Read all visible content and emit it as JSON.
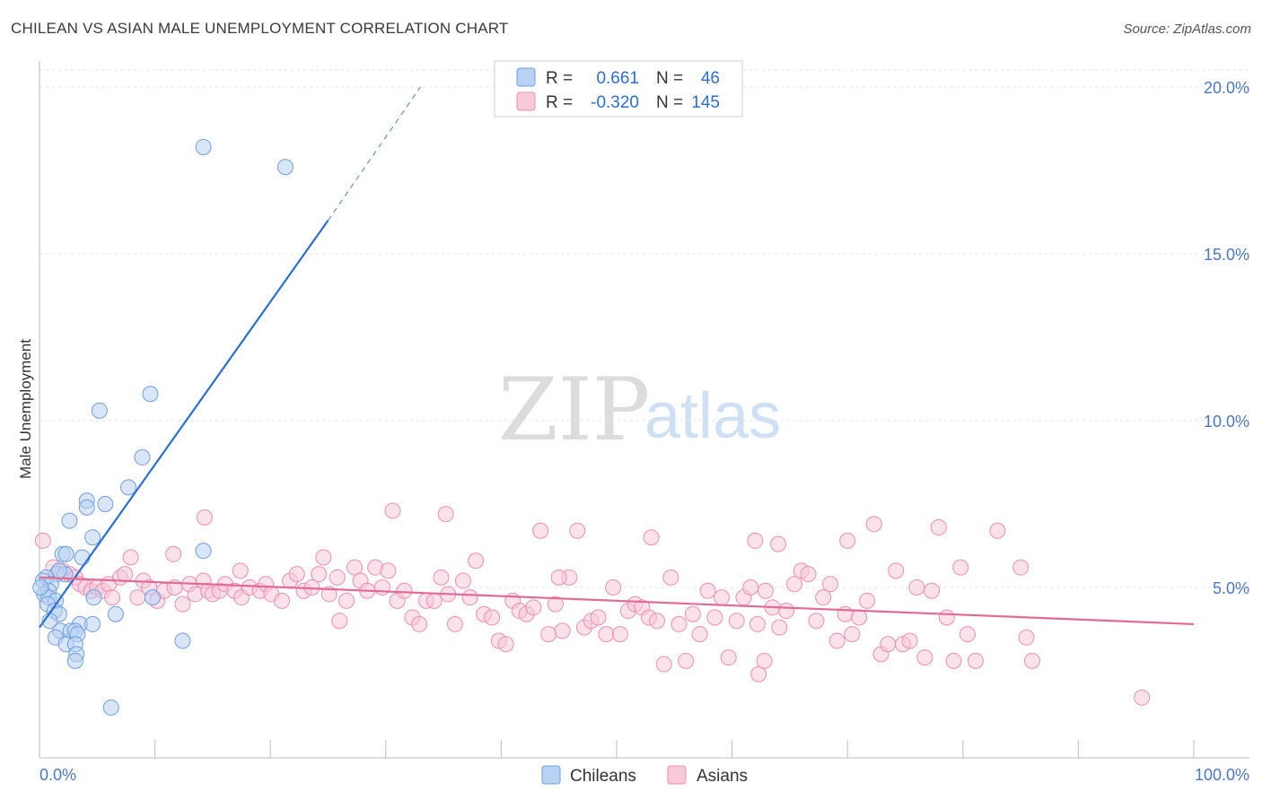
{
  "title": "CHILEAN VS ASIAN MALE UNEMPLOYMENT CORRELATION CHART",
  "source": "Source: ZipAtlas.com",
  "watermark": {
    "zip": "ZIP",
    "atlas": "atlas"
  },
  "colors": {
    "blue": "#6f9fe0",
    "blue_fill": "#b9d2f3",
    "blue_line": "#2b6fcf",
    "pink": "#ec8fb0",
    "pink_fill": "#f7c9d9",
    "pink_line": "#e26a96",
    "axis_text": "#4a78c2"
  },
  "legend": {
    "row1": {
      "r_label": "R =",
      "r_value": "0.661",
      "n_label": "N =",
      "n_value": "46"
    },
    "row2": {
      "r_label": "R =",
      "r_value": "-0.320",
      "n_label": "N =",
      "n_value": "145"
    }
  },
  "bottom_legend": {
    "chileans": "Chileans",
    "asians": "Asians"
  },
  "chart_data": {
    "type": "scatter",
    "title": "CHILEAN VS ASIAN MALE UNEMPLOYMENT CORRELATION CHART",
    "xlabel": "",
    "ylabel": "Male Unemployment",
    "xlim": [
      0,
      100
    ],
    "ylim": [
      0,
      20.5
    ],
    "x_tick_labels": [
      "0.0%",
      "100.0%"
    ],
    "y_ticks": [
      5,
      10,
      15,
      20
    ],
    "y_tick_labels": [
      "5.0%",
      "10.0%",
      "15.0%",
      "20.0%"
    ],
    "grid": true,
    "series": [
      {
        "name": "Chileans",
        "r": 0.661,
        "n": 46,
        "trend": {
          "x0": 0,
          "y0": 3.8,
          "x1": 25,
          "y1": 16.0,
          "dash_to_x": 33,
          "dash_to_y": 20.0
        },
        "points": [
          [
            14.2,
            18.2
          ],
          [
            21.3,
            17.6
          ],
          [
            9.6,
            10.8
          ],
          [
            5.2,
            10.3
          ],
          [
            8.9,
            8.9
          ],
          [
            7.7,
            8.0
          ],
          [
            4.1,
            7.6
          ],
          [
            5.7,
            7.5
          ],
          [
            4.1,
            7.4
          ],
          [
            2.6,
            7.0
          ],
          [
            4.6,
            6.5
          ],
          [
            14.2,
            6.1
          ],
          [
            2.0,
            6.0
          ],
          [
            2.3,
            6.0
          ],
          [
            3.7,
            5.9
          ],
          [
            1.5,
            5.4
          ],
          [
            2.2,
            5.4
          ],
          [
            1.7,
            5.5
          ],
          [
            0.6,
            5.3
          ],
          [
            0.3,
            5.2
          ],
          [
            1.0,
            5.1
          ],
          [
            0.8,
            4.9
          ],
          [
            0.4,
            4.8
          ],
          [
            0.8,
            4.7
          ],
          [
            4.7,
            4.7
          ],
          [
            9.8,
            4.7
          ],
          [
            1.4,
            4.6
          ],
          [
            0.7,
            4.5
          ],
          [
            1.3,
            4.3
          ],
          [
            1.7,
            4.2
          ],
          [
            6.6,
            4.2
          ],
          [
            0.9,
            4.0
          ],
          [
            3.5,
            3.9
          ],
          [
            4.6,
            3.9
          ],
          [
            1.8,
            3.7
          ],
          [
            2.7,
            3.7
          ],
          [
            3.1,
            3.7
          ],
          [
            3.3,
            3.6
          ],
          [
            1.4,
            3.5
          ],
          [
            2.3,
            3.3
          ],
          [
            12.4,
            3.4
          ],
          [
            3.1,
            3.3
          ],
          [
            3.2,
            3.0
          ],
          [
            3.1,
            2.8
          ],
          [
            6.2,
            1.4
          ],
          [
            0.1,
            5.0
          ]
        ]
      },
      {
        "name": "Asians",
        "r": -0.32,
        "n": 145,
        "trend": {
          "x0": 0,
          "y0": 5.3,
          "x1": 100,
          "y1": 3.9
        },
        "points": [
          [
            0.3,
            6.4
          ],
          [
            1.2,
            5.6
          ],
          [
            2.0,
            5.5
          ],
          [
            2.6,
            5.4
          ],
          [
            3.1,
            5.3
          ],
          [
            3.5,
            5.1
          ],
          [
            4.0,
            5.0
          ],
          [
            4.5,
            4.9
          ],
          [
            5.0,
            5.0
          ],
          [
            5.5,
            4.9
          ],
          [
            6.0,
            5.1
          ],
          [
            6.3,
            4.7
          ],
          [
            7.0,
            5.3
          ],
          [
            7.4,
            5.4
          ],
          [
            7.9,
            5.9
          ],
          [
            8.5,
            4.7
          ],
          [
            9.0,
            5.2
          ],
          [
            9.5,
            5.0
          ],
          [
            10.2,
            4.6
          ],
          [
            10.8,
            4.9
          ],
          [
            11.7,
            5.0
          ],
          [
            12.4,
            4.5
          ],
          [
            11.6,
            6.0
          ],
          [
            13.0,
            5.1
          ],
          [
            13.5,
            4.8
          ],
          [
            14.2,
            5.2
          ],
          [
            14.6,
            4.9
          ],
          [
            15.0,
            4.8
          ],
          [
            15.6,
            4.9
          ],
          [
            16.1,
            5.1
          ],
          [
            16.9,
            4.9
          ],
          [
            17.5,
            4.7
          ],
          [
            17.4,
            5.5
          ],
          [
            18.2,
            5.0
          ],
          [
            19.1,
            4.9
          ],
          [
            19.6,
            5.1
          ],
          [
            20.1,
            4.8
          ],
          [
            21.0,
            4.6
          ],
          [
            21.7,
            5.2
          ],
          [
            22.3,
            5.4
          ],
          [
            22.9,
            4.9
          ],
          [
            23.6,
            5.0
          ],
          [
            24.2,
            5.4
          ],
          [
            24.6,
            5.9
          ],
          [
            25.1,
            4.8
          ],
          [
            25.8,
            5.3
          ],
          [
            26.0,
            4.0
          ],
          [
            26.6,
            4.6
          ],
          [
            27.3,
            5.6
          ],
          [
            27.8,
            5.2
          ],
          [
            28.4,
            4.9
          ],
          [
            29.1,
            5.6
          ],
          [
            29.7,
            5.0
          ],
          [
            30.2,
            5.5
          ],
          [
            31.0,
            4.6
          ],
          [
            31.6,
            4.9
          ],
          [
            32.3,
            4.1
          ],
          [
            32.9,
            3.9
          ],
          [
            33.5,
            4.6
          ],
          [
            34.2,
            4.6
          ],
          [
            34.8,
            5.3
          ],
          [
            35.4,
            4.8
          ],
          [
            36.0,
            3.9
          ],
          [
            36.7,
            5.2
          ],
          [
            37.3,
            4.7
          ],
          [
            37.8,
            5.8
          ],
          [
            38.5,
            4.2
          ],
          [
            39.2,
            4.1
          ],
          [
            39.8,
            3.4
          ],
          [
            40.4,
            3.3
          ],
          [
            41.0,
            4.6
          ],
          [
            41.6,
            4.3
          ],
          [
            42.2,
            4.2
          ],
          [
            42.8,
            4.4
          ],
          [
            43.4,
            6.7
          ],
          [
            44.1,
            3.6
          ],
          [
            44.7,
            4.5
          ],
          [
            45.3,
            3.7
          ],
          [
            45.9,
            5.3
          ],
          [
            46.6,
            6.7
          ],
          [
            47.2,
            3.8
          ],
          [
            47.8,
            4.0
          ],
          [
            48.4,
            4.1
          ],
          [
            49.1,
            3.6
          ],
          [
            49.7,
            5.0
          ],
          [
            50.3,
            3.6
          ],
          [
            51.0,
            4.3
          ],
          [
            51.6,
            4.5
          ],
          [
            52.2,
            4.4
          ],
          [
            52.8,
            4.1
          ],
          [
            53.5,
            4.0
          ],
          [
            54.1,
            2.7
          ],
          [
            54.7,
            5.3
          ],
          [
            55.4,
            3.9
          ],
          [
            56.0,
            2.8
          ],
          [
            56.6,
            4.2
          ],
          [
            57.2,
            3.6
          ],
          [
            57.9,
            4.9
          ],
          [
            58.5,
            4.1
          ],
          [
            59.1,
            4.7
          ],
          [
            59.7,
            2.9
          ],
          [
            60.4,
            4.0
          ],
          [
            61.0,
            4.7
          ],
          [
            61.6,
            5.0
          ],
          [
            62.2,
            3.9
          ],
          [
            62.9,
            4.9
          ],
          [
            63.5,
            4.4
          ],
          [
            64.1,
            3.8
          ],
          [
            64.7,
            4.3
          ],
          [
            65.4,
            5.1
          ],
          [
            66.0,
            5.5
          ],
          [
            66.6,
            5.4
          ],
          [
            67.3,
            4.0
          ],
          [
            67.9,
            4.7
          ],
          [
            68.5,
            5.1
          ],
          [
            69.1,
            3.4
          ],
          [
            69.8,
            4.2
          ],
          [
            70.4,
            3.6
          ],
          [
            71.0,
            4.1
          ],
          [
            71.7,
            4.6
          ],
          [
            72.3,
            6.9
          ],
          [
            72.9,
            3.0
          ],
          [
            73.5,
            3.3
          ],
          [
            74.2,
            5.5
          ],
          [
            74.8,
            3.3
          ],
          [
            75.4,
            3.4
          ],
          [
            76.0,
            5.0
          ],
          [
            76.7,
            2.9
          ],
          [
            77.3,
            4.9
          ],
          [
            77.9,
            6.8
          ],
          [
            78.6,
            4.1
          ],
          [
            79.2,
            2.8
          ],
          [
            79.8,
            5.6
          ],
          [
            80.4,
            3.6
          ],
          [
            81.1,
            2.8
          ],
          [
            45.0,
            5.3
          ],
          [
            30.6,
            7.3
          ],
          [
            35.2,
            7.2
          ],
          [
            14.3,
            7.1
          ],
          [
            62.0,
            6.4
          ],
          [
            64.0,
            6.3
          ],
          [
            70.0,
            6.4
          ],
          [
            83.0,
            6.7
          ],
          [
            85.0,
            5.6
          ],
          [
            53.0,
            6.5
          ],
          [
            62.3,
            2.4
          ],
          [
            85.5,
            3.5
          ],
          [
            95.5,
            1.7
          ],
          [
            86.0,
            2.8
          ],
          [
            62.8,
            2.8
          ]
        ]
      }
    ]
  }
}
